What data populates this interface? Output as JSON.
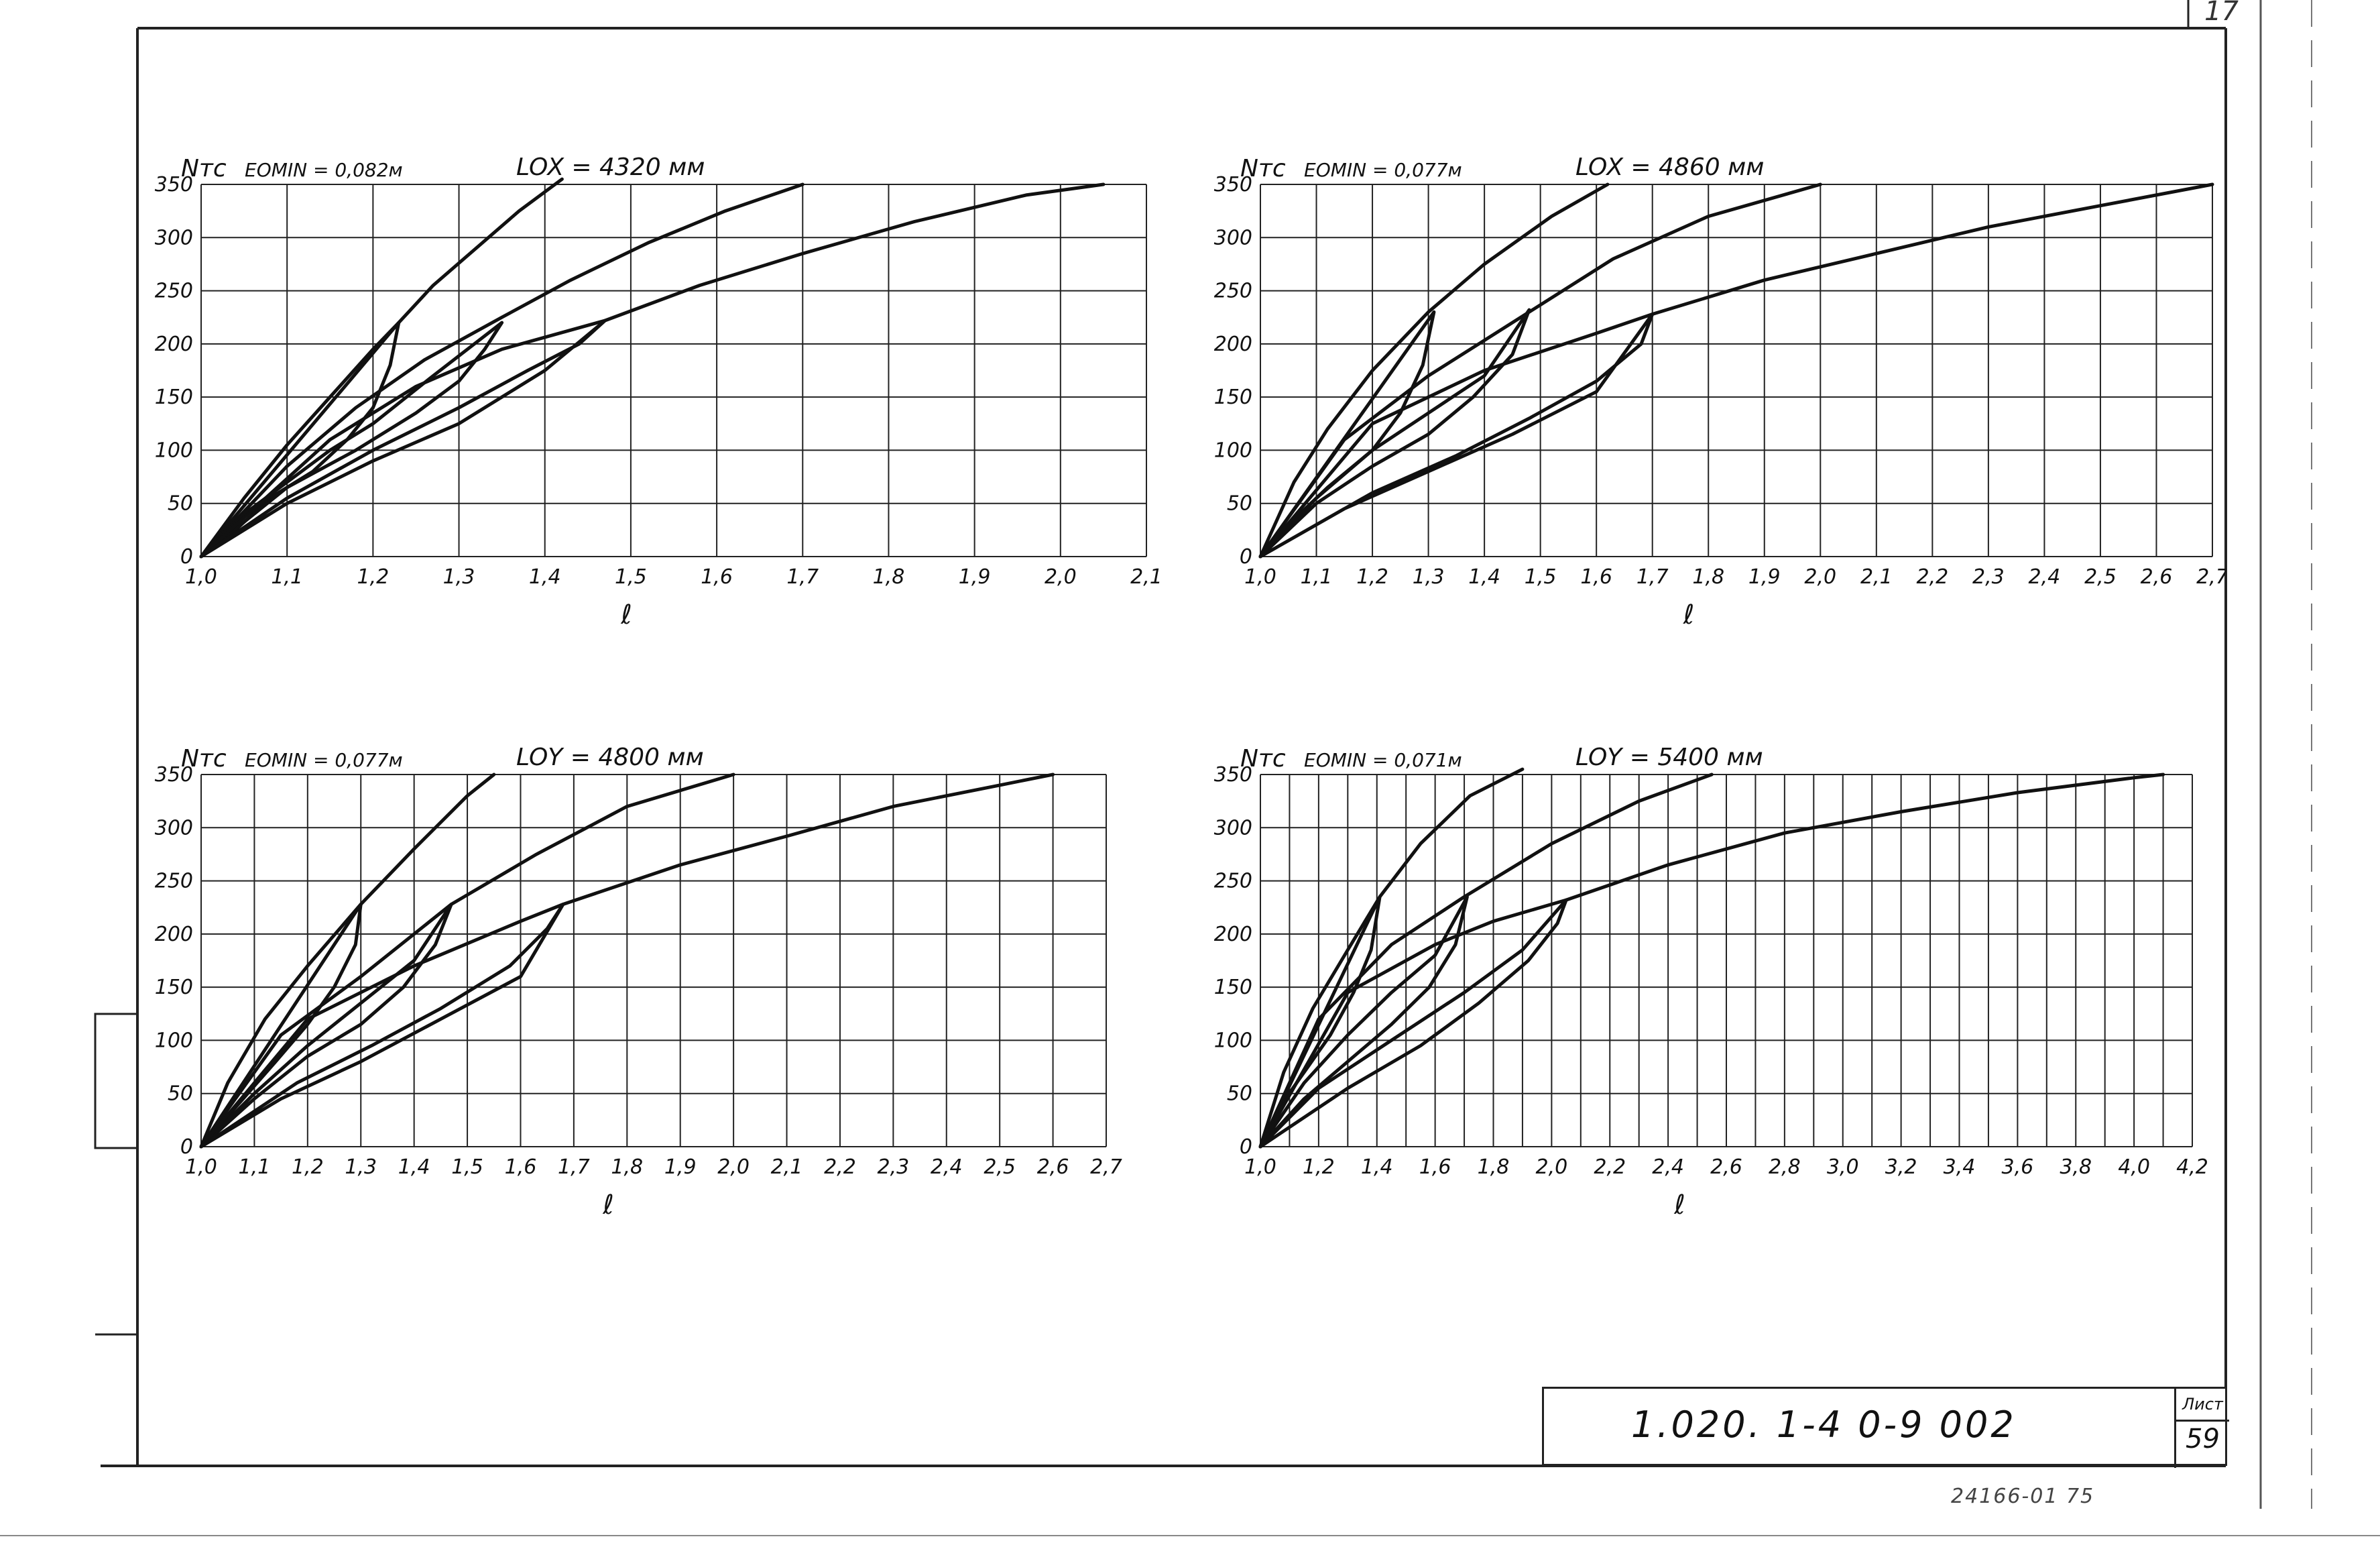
{
  "document": {
    "code": "1.020. 1-4   0-9   002",
    "sheet_label": "Лист",
    "sheet_number": "59",
    "archive_number": "24166-01 75",
    "corner_number": "17"
  },
  "chart_data": [
    {
      "type": "line",
      "panel": "top-left",
      "title": "LOX = 4320 мм",
      "subtitle": "EOMIN = 0,082м",
      "ylabel": "Nтс",
      "xlabel": "ℓ",
      "xlim": [
        1.0,
        2.1
      ],
      "ylim": [
        0,
        350
      ],
      "xticks": [
        1.0,
        1.1,
        1.2,
        1.3,
        1.4,
        1.5,
        1.6,
        1.7,
        1.8,
        1.9,
        2.0,
        2.1
      ],
      "xtick_labels": [
        "1,0",
        "1,1",
        "1,2",
        "1,3",
        "1,4",
        "1,5",
        "1,6",
        "1,7",
        "1,8",
        "1,9",
        "2,0",
        "2,1"
      ],
      "yticks": [
        0,
        50,
        100,
        150,
        200,
        250,
        300,
        350
      ],
      "xgrid_step": 0.1,
      "ygrid_step": 50,
      "grid": true,
      "series": [
        {
          "x": [
            1.0,
            1.05,
            1.1,
            1.15,
            1.2,
            1.23,
            1.27,
            1.32,
            1.37,
            1.42
          ],
          "y": [
            0,
            55,
            105,
            150,
            195,
            220,
            255,
            290,
            325,
            355
          ]
        },
        {
          "x": [
            1.0,
            1.23,
            1.22,
            1.2,
            1.17,
            1.13,
            1.08,
            1.04,
            1.0
          ],
          "y": [
            0,
            220,
            180,
            140,
            110,
            80,
            55,
            25,
            0
          ]
        },
        {
          "x": [
            1.0,
            1.1,
            1.18,
            1.26,
            1.35,
            1.43,
            1.52,
            1.61,
            1.7
          ],
          "y": [
            0,
            85,
            140,
            185,
            225,
            260,
            295,
            325,
            350
          ]
        },
        {
          "x": [
            1.0,
            1.05,
            1.1,
            1.15,
            1.2,
            1.27,
            1.35,
            1.33,
            1.3,
            1.25,
            1.18,
            1.1,
            1.0
          ],
          "y": [
            0,
            40,
            70,
            100,
            125,
            170,
            220,
            195,
            165,
            135,
            100,
            65,
            0
          ]
        },
        {
          "x": [
            1.0,
            1.15,
            1.25,
            1.35,
            1.47,
            1.58,
            1.7,
            1.83,
            1.96,
            2.05
          ],
          "y": [
            0,
            110,
            160,
            195,
            222,
            255,
            285,
            315,
            340,
            350
          ]
        },
        {
          "x": [
            1.0,
            1.1,
            1.2,
            1.3,
            1.4,
            1.47,
            1.44,
            1.38,
            1.3,
            1.2,
            1.1,
            1.0
          ],
          "y": [
            0,
            50,
            90,
            125,
            175,
            222,
            200,
            175,
            140,
            100,
            55,
            0
          ]
        }
      ]
    },
    {
      "type": "line",
      "panel": "top-right",
      "title": "LOX = 4860 мм",
      "subtitle": "EOMIN = 0,077м",
      "ylabel": "Nтс",
      "xlabel": "ℓ",
      "xlim": [
        1.0,
        2.7
      ],
      "ylim": [
        0,
        350
      ],
      "xticks": [
        1.0,
        1.1,
        1.2,
        1.3,
        1.4,
        1.5,
        1.6,
        1.7,
        1.8,
        1.9,
        2.0,
        2.1,
        2.2,
        2.3,
        2.4,
        2.5,
        2.6,
        2.7
      ],
      "xtick_labels": [
        "1,0",
        "1,1",
        "1,2",
        "1,3",
        "1,4",
        "1,5",
        "1,6",
        "1,7",
        "1,8",
        "1,9",
        "2,0",
        "2,1",
        "2,2",
        "2,3",
        "2,4",
        "2,5",
        "2,6",
        "2,7"
      ],
      "yticks": [
        0,
        50,
        100,
        150,
        200,
        250,
        300,
        350
      ],
      "xgrid_step": 0.1,
      "ygrid_step": 50,
      "grid": true,
      "series": [
        {
          "x": [
            1.0,
            1.06,
            1.12,
            1.2,
            1.3,
            1.4,
            1.52,
            1.62
          ],
          "y": [
            0,
            70,
            120,
            175,
            230,
            275,
            320,
            350
          ]
        },
        {
          "x": [
            1.0,
            1.31,
            1.29,
            1.25,
            1.2,
            1.12,
            1.05,
            1.0
          ],
          "y": [
            0,
            230,
            180,
            135,
            100,
            65,
            30,
            0
          ]
        },
        {
          "x": [
            1.0,
            1.15,
            1.3,
            1.48,
            1.63,
            1.8,
            2.0
          ],
          "y": [
            0,
            110,
            170,
            230,
            280,
            320,
            350
          ]
        },
        {
          "x": [
            1.0,
            1.1,
            1.2,
            1.3,
            1.4,
            1.48,
            1.45,
            1.38,
            1.3,
            1.2,
            1.1,
            1.0
          ],
          "y": [
            0,
            55,
            100,
            135,
            170,
            232,
            190,
            150,
            115,
            85,
            50,
            0
          ]
        },
        {
          "x": [
            1.0,
            1.2,
            1.4,
            1.6,
            1.7,
            1.9,
            2.1,
            2.3,
            2.5,
            2.7
          ],
          "y": [
            0,
            125,
            175,
            210,
            228,
            260,
            285,
            310,
            330,
            350
          ]
        },
        {
          "x": [
            1.0,
            1.15,
            1.3,
            1.45,
            1.6,
            1.7,
            1.68,
            1.6,
            1.48,
            1.35,
            1.2,
            1.0
          ],
          "y": [
            0,
            45,
            80,
            115,
            155,
            228,
            200,
            165,
            130,
            95,
            60,
            0
          ]
        }
      ]
    },
    {
      "type": "line",
      "panel": "bottom-left",
      "title": "LOY = 4800 мм",
      "subtitle": "EOMIN = 0,077м",
      "ylabel": "Nтс",
      "xlabel": "ℓ",
      "xlim": [
        1.0,
        2.7
      ],
      "ylim": [
        0,
        350
      ],
      "xticks": [
        1.0,
        1.1,
        1.2,
        1.3,
        1.4,
        1.5,
        1.6,
        1.7,
        1.8,
        1.9,
        2.0,
        2.1,
        2.2,
        2.3,
        2.4,
        2.5,
        2.6,
        2.7
      ],
      "xtick_labels": [
        "1,0",
        "1,1",
        "1,2",
        "1,3",
        "1,4",
        "1,5",
        "1,6",
        "1,7",
        "1,8",
        "1,9",
        "2,0",
        "2,1",
        "2,2",
        "2,3",
        "2,4",
        "2,5",
        "2,6",
        "2,7"
      ],
      "yticks": [
        0,
        50,
        100,
        150,
        200,
        250,
        300,
        350
      ],
      "xgrid_step": 0.1,
      "ygrid_step": 50,
      "grid": true,
      "series": [
        {
          "x": [
            1.0,
            1.05,
            1.12,
            1.2,
            1.3,
            1.4,
            1.5,
            1.55
          ],
          "y": [
            0,
            60,
            120,
            170,
            228,
            280,
            330,
            350
          ]
        },
        {
          "x": [
            1.0,
            1.3,
            1.29,
            1.25,
            1.2,
            1.14,
            1.07,
            1.0
          ],
          "y": [
            0,
            228,
            190,
            150,
            115,
            80,
            40,
            0
          ]
        },
        {
          "x": [
            1.0,
            1.15,
            1.3,
            1.47,
            1.63,
            1.8,
            2.0
          ],
          "y": [
            0,
            105,
            160,
            228,
            275,
            320,
            350
          ]
        },
        {
          "x": [
            1.0,
            1.1,
            1.2,
            1.3,
            1.4,
            1.47,
            1.44,
            1.38,
            1.3,
            1.2,
            1.1,
            1.0
          ],
          "y": [
            0,
            50,
            95,
            135,
            175,
            228,
            190,
            150,
            115,
            85,
            45,
            0
          ]
        },
        {
          "x": [
            1.0,
            1.2,
            1.4,
            1.6,
            1.68,
            1.9,
            2.1,
            2.3,
            2.5,
            2.6
          ],
          "y": [
            0,
            120,
            170,
            212,
            228,
            265,
            292,
            320,
            340,
            350
          ]
        },
        {
          "x": [
            1.0,
            1.15,
            1.3,
            1.45,
            1.6,
            1.68,
            1.65,
            1.58,
            1.45,
            1.32,
            1.18,
            1.0
          ],
          "y": [
            0,
            45,
            80,
            120,
            160,
            228,
            205,
            170,
            130,
            95,
            60,
            0
          ]
        }
      ]
    },
    {
      "type": "line",
      "panel": "bottom-right",
      "title": "LOY = 5400 мм",
      "subtitle": "EOMIN = 0,071м",
      "ylabel": "Nтс",
      "xlabel": "ℓ",
      "xlim": [
        1.0,
        4.2
      ],
      "ylim": [
        0,
        350
      ],
      "xticks": [
        1.0,
        1.2,
        1.4,
        1.6,
        1.8,
        2.0,
        2.2,
        2.4,
        2.6,
        2.8,
        3.0,
        3.2,
        3.4,
        3.6,
        3.8,
        4.0,
        4.2
      ],
      "xtick_labels": [
        "1,0",
        "1,2",
        "1,4",
        "1,6",
        "1,8",
        "2,0",
        "2,2",
        "2,4",
        "2,6",
        "2,8",
        "3,0",
        "3,2",
        "3,4",
        "3,6",
        "3,8",
        "4,0",
        "4,2"
      ],
      "yticks": [
        0,
        50,
        100,
        150,
        200,
        250,
        300,
        350
      ],
      "xgrid_step": 0.1,
      "ygrid_step": 50,
      "grid": true,
      "series": [
        {
          "x": [
            1.0,
            1.08,
            1.18,
            1.3,
            1.41,
            1.55,
            1.72,
            1.9
          ],
          "y": [
            0,
            70,
            130,
            185,
            235,
            285,
            330,
            355
          ]
        },
        {
          "x": [
            1.0,
            1.41,
            1.38,
            1.32,
            1.24,
            1.15,
            1.06,
            1.0
          ],
          "y": [
            0,
            235,
            185,
            145,
            105,
            70,
            35,
            0
          ]
        },
        {
          "x": [
            1.0,
            1.2,
            1.45,
            1.7,
            2.0,
            2.3,
            2.55
          ],
          "y": [
            0,
            120,
            190,
            235,
            285,
            325,
            350
          ]
        },
        {
          "x": [
            1.0,
            1.15,
            1.3,
            1.45,
            1.6,
            1.71,
            1.67,
            1.58,
            1.45,
            1.3,
            1.15,
            1.0
          ],
          "y": [
            0,
            60,
            105,
            145,
            180,
            235,
            190,
            150,
            115,
            80,
            45,
            0
          ]
        },
        {
          "x": [
            1.0,
            1.3,
            1.6,
            1.8,
            2.05,
            2.4,
            2.8,
            3.2,
            3.6,
            4.0,
            4.1
          ],
          "y": [
            0,
            145,
            190,
            212,
            232,
            265,
            295,
            315,
            333,
            347,
            350
          ]
        },
        {
          "x": [
            1.0,
            1.2,
            1.45,
            1.7,
            1.9,
            2.05,
            2.02,
            1.92,
            1.75,
            1.55,
            1.3,
            1.0
          ],
          "y": [
            0,
            55,
            100,
            145,
            185,
            232,
            210,
            175,
            135,
            95,
            55,
            0
          ]
        }
      ]
    }
  ]
}
